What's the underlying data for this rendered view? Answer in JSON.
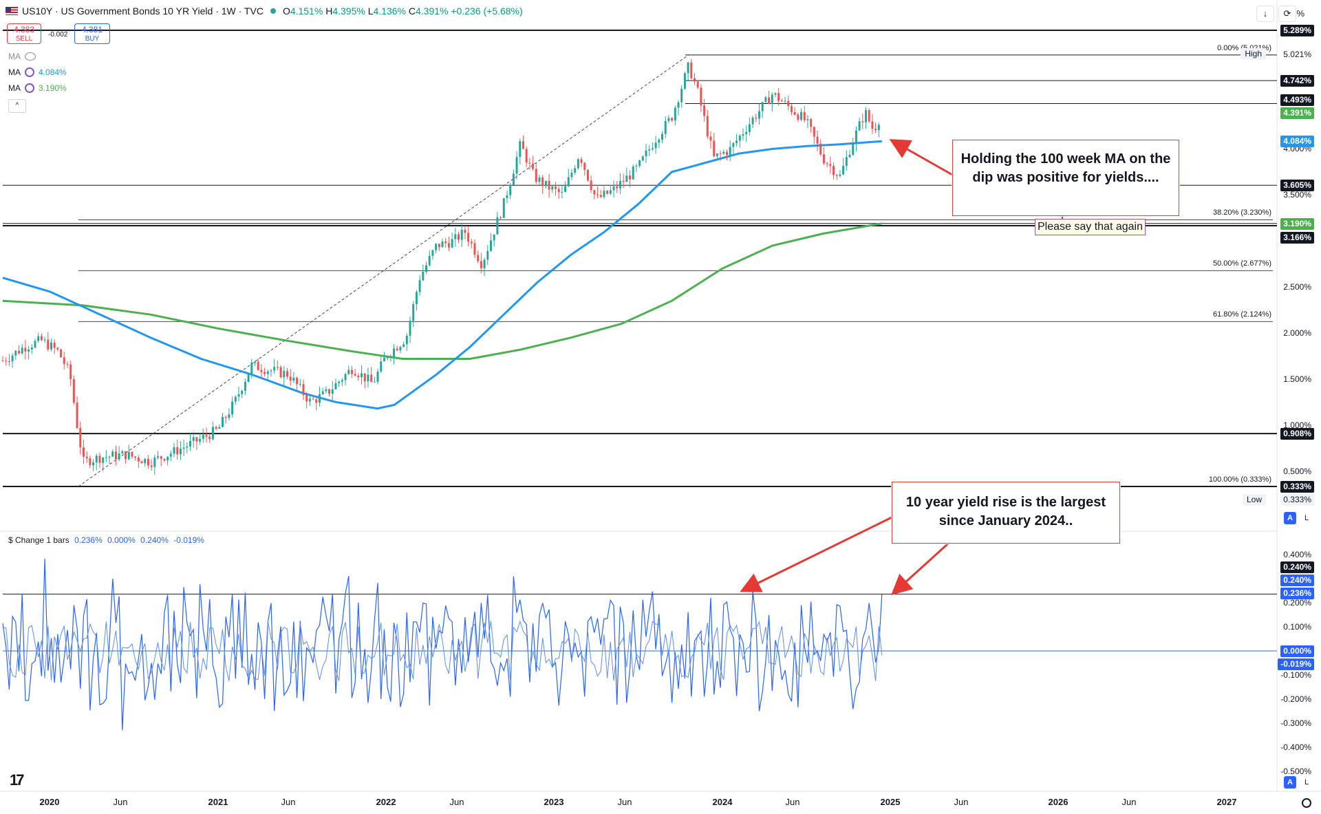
{
  "header": {
    "title": "US10Y · US Government Bonds 10 YR Yield · 1W · TVC",
    "ohlc": [
      {
        "k": "O",
        "v": "4.151%"
      },
      {
        "k": "H",
        "v": "4.395%"
      },
      {
        "k": "L",
        "v": "4.136%"
      },
      {
        "k": "C",
        "v": "4.391%"
      },
      {
        "k": "",
        "v": "+0.236 (+5.68%)"
      }
    ]
  },
  "trade": {
    "sell_price": "4.383",
    "sell_label": "SELL",
    "spread": "-0.002",
    "buy_price": "4.381",
    "buy_label": "BUY"
  },
  "indicators": [
    {
      "label": "MA",
      "value": "",
      "icon": "eye-off-icon"
    },
    {
      "label": "MA",
      "value": "4.084%",
      "color": "#2196f3"
    },
    {
      "label": "MA",
      "value": "3.190%",
      "color": "#4caf50"
    }
  ],
  "collapse_label": "^",
  "sub_legend": {
    "title": "$ Change 1 bars",
    "values": [
      "0.236%",
      "0.000%",
      "0.240%",
      "-0.019%"
    ]
  },
  "toolbar": {
    "down": "↓",
    "refresh": "⟳",
    "percent": "%"
  },
  "price_tags": [
    {
      "value": "5.289%",
      "y": 5.289,
      "style": "blk"
    },
    {
      "value": "5.021%",
      "y": 5.021,
      "style": "plain"
    },
    {
      "value": "4.742%",
      "y": 4.742,
      "style": "blk"
    },
    {
      "value": "4.493%",
      "y": 4.493,
      "style": "blk"
    },
    {
      "value": "4.391%",
      "y": 4.391,
      "style": "grn"
    },
    {
      "value": "4.084%",
      "y": 4.084,
      "style": "blu"
    },
    {
      "value": "3.605%",
      "y": 3.605,
      "style": "blk"
    },
    {
      "value": "3.190%",
      "y": 3.19,
      "style": "grn"
    },
    {
      "value": "3.166%",
      "y": 3.166,
      "style": "blk"
    },
    {
      "value": "0.908%",
      "y": 0.908,
      "style": "blk"
    },
    {
      "value": "0.333%",
      "y": 0.333,
      "style": "blk"
    }
  ],
  "axis_ticks": [
    "4.000%",
    "3.500%",
    "2.500%",
    "2.000%",
    "1.500%",
    "1.000%",
    "0.500%"
  ],
  "high": {
    "label": "High",
    "value": "5.021%"
  },
  "low": {
    "label": "Low",
    "value": "0.333%"
  },
  "sub_tags": [
    {
      "value": "0.240%",
      "y": 0.24,
      "style": "blk"
    },
    {
      "value": "0.240%",
      "y": 0.24,
      "style": "nav"
    },
    {
      "value": "0.236%",
      "y": 0.236,
      "style": "nav"
    },
    {
      "value": "0.000%",
      "y": 0.0,
      "style": "nav"
    },
    {
      "value": "-0.019%",
      "y": -0.019,
      "style": "nav"
    }
  ],
  "sub_ticks": [
    "0.400%",
    "0.300%",
    "0.200%",
    "0.100%",
    "-0.100%",
    "-0.200%",
    "-0.300%",
    "-0.400%",
    "-0.500%"
  ],
  "fib_levels": [
    {
      "label": "0.00% (5.021%)",
      "y": 5.021
    },
    {
      "label": "38.20% (3.230%)",
      "y": 3.23
    },
    {
      "label": "50.00% (2.677%)",
      "y": 2.677
    },
    {
      "label": "61.80% (2.124%)",
      "y": 2.124
    },
    {
      "label": "100.00% (0.333%)",
      "y": 0.333
    }
  ],
  "x_labels": [
    {
      "t": "2020",
      "x": 2020.0,
      "bold": true
    },
    {
      "t": "Jun",
      "x": 2020.42,
      "bold": false
    },
    {
      "t": "2021",
      "x": 2021.0,
      "bold": true
    },
    {
      "t": "Jun",
      "x": 2021.42,
      "bold": false
    },
    {
      "t": "2022",
      "x": 2022.0,
      "bold": true
    },
    {
      "t": "Jun",
      "x": 2022.42,
      "bold": false
    },
    {
      "t": "2023",
      "x": 2023.0,
      "bold": true
    },
    {
      "t": "Jun",
      "x": 2023.42,
      "bold": false
    },
    {
      "t": "2024",
      "x": 2024.0,
      "bold": true
    },
    {
      "t": "Jun",
      "x": 2024.42,
      "bold": false
    },
    {
      "t": "2025",
      "x": 2025.0,
      "bold": true
    },
    {
      "t": "Jun",
      "x": 2025.42,
      "bold": false
    },
    {
      "t": "2026",
      "x": 2026.0,
      "bold": true
    },
    {
      "t": "Jun",
      "x": 2026.42,
      "bold": false
    },
    {
      "t": "2027",
      "x": 2027.0,
      "bold": true
    }
  ],
  "annotations": {
    "callout1": "Holding the 100 week MA on the dip was positive for yields....",
    "note": "Please say that again",
    "callout2": "10 year yield rise is the largest since January 2024.."
  },
  "scale_buttons": {
    "a": "A",
    "l": "L"
  },
  "logo": "17",
  "chart_data": {
    "type": "line",
    "title": "US10Y · US Government Bonds 10 YR Yield · 1W · TVC",
    "price_key": [
      [
        2019.72,
        1.7
      ],
      [
        2019.85,
        1.85
      ],
      [
        2019.95,
        1.92
      ],
      [
        2020.05,
        1.8
      ],
      [
        2020.12,
        1.55
      ],
      [
        2020.17,
        0.9
      ],
      [
        2020.2,
        0.6
      ],
      [
        2020.3,
        0.65
      ],
      [
        2020.45,
        0.68
      ],
      [
        2020.6,
        0.6
      ],
      [
        2020.75,
        0.72
      ],
      [
        2020.9,
        0.85
      ],
      [
        2021.0,
        0.95
      ],
      [
        2021.1,
        1.25
      ],
      [
        2021.2,
        1.65
      ],
      [
        2021.3,
        1.6
      ],
      [
        2021.42,
        1.55
      ],
      [
        2021.55,
        1.25
      ],
      [
        2021.65,
        1.35
      ],
      [
        2021.8,
        1.62
      ],
      [
        2021.92,
        1.45
      ],
      [
        2022.0,
        1.75
      ],
      [
        2022.12,
        1.95
      ],
      [
        2022.2,
        2.6
      ],
      [
        2022.3,
        2.95
      ],
      [
        2022.4,
        3.0
      ],
      [
        2022.47,
        3.1
      ],
      [
        2022.57,
        2.75
      ],
      [
        2022.7,
        3.4
      ],
      [
        2022.8,
        4.05
      ],
      [
        2022.88,
        3.7
      ],
      [
        2022.95,
        3.6
      ],
      [
        2023.05,
        3.5
      ],
      [
        2023.15,
        3.95
      ],
      [
        2023.25,
        3.45
      ],
      [
        2023.35,
        3.55
      ],
      [
        2023.5,
        3.8
      ],
      [
        2023.6,
        4.1
      ],
      [
        2023.7,
        4.35
      ],
      [
        2023.8,
        4.9
      ],
      [
        2023.85,
        4.65
      ],
      [
        2023.95,
        3.9
      ],
      [
        2024.05,
        4.0
      ],
      [
        2024.15,
        4.25
      ],
      [
        2024.3,
        4.6
      ],
      [
        2024.4,
        4.45
      ],
      [
        2024.5,
        4.3
      ],
      [
        2024.6,
        3.9
      ],
      [
        2024.7,
        3.7
      ],
      [
        2024.78,
        4.1
      ],
      [
        2024.85,
        4.4
      ],
      [
        2024.9,
        4.2
      ],
      [
        2024.95,
        4.39
      ]
    ],
    "ma100_key": [
      [
        2019.72,
        2.6
      ],
      [
        2020.0,
        2.45
      ],
      [
        2020.3,
        2.2
      ],
      [
        2020.6,
        1.95
      ],
      [
        2020.9,
        1.72
      ],
      [
        2021.2,
        1.55
      ],
      [
        2021.5,
        1.35
      ],
      [
        2021.7,
        1.25
      ],
      [
        2021.95,
        1.18
      ],
      [
        2022.05,
        1.22
      ],
      [
        2022.3,
        1.55
      ],
      [
        2022.5,
        1.85
      ],
      [
        2022.7,
        2.2
      ],
      [
        2022.9,
        2.55
      ],
      [
        2023.1,
        2.85
      ],
      [
        2023.3,
        3.1
      ],
      [
        2023.5,
        3.4
      ],
      [
        2023.7,
        3.75
      ],
      [
        2023.9,
        3.85
      ],
      [
        2024.1,
        3.95
      ],
      [
        2024.3,
        4.0
      ],
      [
        2024.5,
        4.03
      ],
      [
        2024.7,
        4.05
      ],
      [
        2024.95,
        4.084
      ]
    ],
    "ma200_key": [
      [
        2019.72,
        2.35
      ],
      [
        2020.2,
        2.3
      ],
      [
        2020.6,
        2.2
      ],
      [
        2021.0,
        2.05
      ],
      [
        2021.4,
        1.92
      ],
      [
        2021.8,
        1.8
      ],
      [
        2022.1,
        1.72
      ],
      [
        2022.5,
        1.72
      ],
      [
        2022.8,
        1.82
      ],
      [
        2023.1,
        1.95
      ],
      [
        2023.4,
        2.1
      ],
      [
        2023.7,
        2.35
      ],
      [
        2024.0,
        2.7
      ],
      [
        2024.3,
        2.95
      ],
      [
        2024.6,
        3.08
      ],
      [
        2024.95,
        3.19
      ]
    ],
    "trendline": [
      [
        2020.17,
        0.333
      ],
      [
        2023.8,
        5.021
      ]
    ],
    "horizontal_lines": [
      5.289,
      5.021,
      4.742,
      4.493,
      3.605,
      3.19,
      3.166,
      0.908,
      0.333
    ],
    "ylim": [
      0.0,
      5.4
    ],
    "xlim": [
      2019.72,
      2027.3
    ],
    "sub_ylim": [
      -0.5,
      0.42
    ],
    "sub_hline": 0.236
  }
}
